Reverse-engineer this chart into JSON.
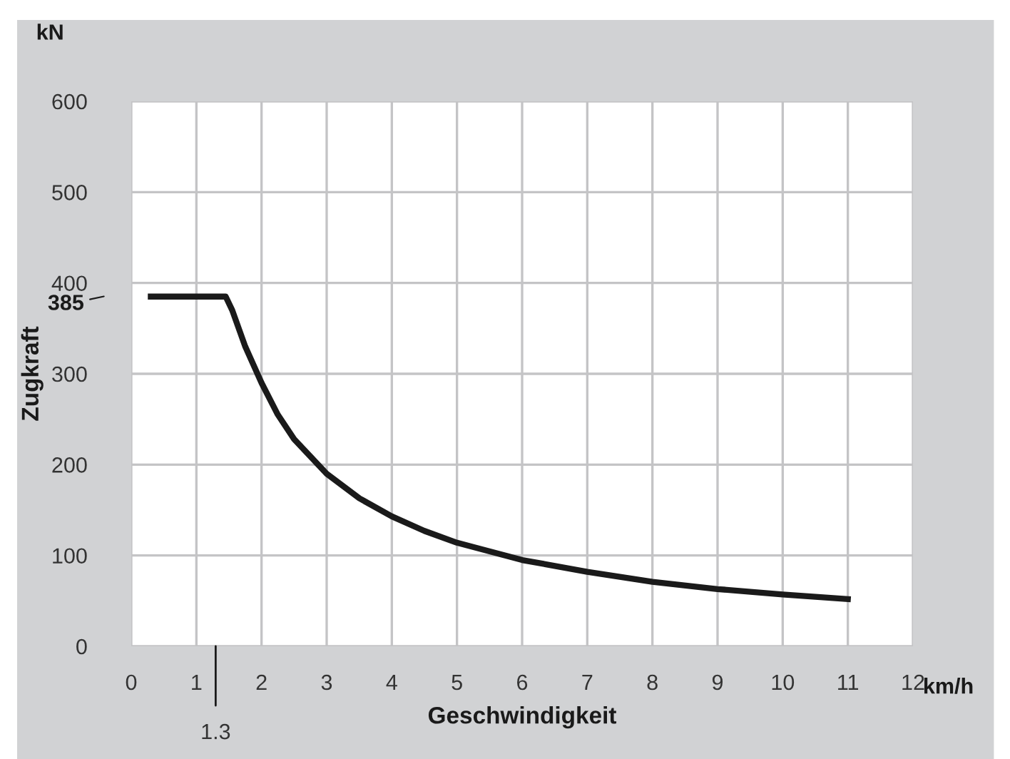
{
  "chart_data": {
    "type": "line",
    "xlabel": "Geschwindigkeit",
    "ylabel": "Zugkraft",
    "annotations": [
      "kN",
      "km/h",
      "385",
      "1.3"
    ],
    "xlim": [
      0,
      12
    ],
    "xticks": [
      0,
      1,
      2,
      3,
      4,
      5,
      6,
      7,
      8,
      9,
      10,
      11,
      12
    ],
    "ylim": [
      0,
      600
    ],
    "yticks": [
      0,
      100,
      200,
      300,
      400,
      500,
      600
    ],
    "grid": true,
    "marker": "none",
    "line_style": "solid",
    "series": [
      {
        "color": "#1a1a1a",
        "x": [
          0.3,
          1.45,
          1.55,
          1.75,
          2,
          2.25,
          2.5,
          3,
          3.5,
          4,
          4.5,
          5,
          6,
          7,
          8,
          9,
          10,
          11
        ],
        "values": [
          385,
          385,
          370,
          330,
          290,
          255,
          228,
          190,
          163,
          143,
          127,
          114,
          95,
          82,
          71,
          63,
          57,
          52
        ]
      }
    ]
  }
}
